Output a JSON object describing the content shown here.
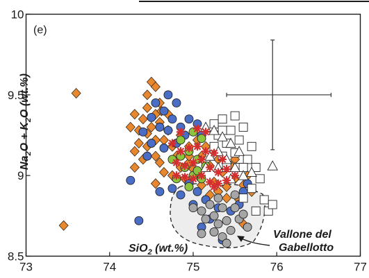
{
  "chart_data": {
    "type": "scatter",
    "panel_label": "(e)",
    "xlim": [
      73,
      77
    ],
    "ylim": [
      8.5,
      10
    ],
    "x_ticks": [
      "73",
      "74",
      "75",
      "76",
      "77"
    ],
    "y_ticks": [
      "8.5",
      "9",
      "9.5",
      "10"
    ],
    "ylabel": {
      "parts": [
        "Na",
        "2",
        "O + K",
        "2",
        "O (wt.%)"
      ]
    },
    "xlabel": {
      "parts": [
        "SiO",
        "2",
        " (wt.%)"
      ]
    },
    "annotation": {
      "line1": "Vallone del",
      "line2": "Gabellotto"
    },
    "error_bar": {
      "x": 75.95,
      "y": 9.5,
      "x_err_low": 0.55,
      "x_err_high": 0.7,
      "y_err_low": 0.34,
      "y_err_high": 0.34
    },
    "series": [
      {
        "marker": "diamond",
        "color": "#e8872e",
        "points": [
          [
            73.6,
            9.51
          ],
          [
            73.45,
            8.69
          ],
          [
            74.5,
            9.58
          ],
          [
            74.55,
            9.55
          ],
          [
            74.45,
            9.5
          ],
          [
            74.6,
            9.45
          ],
          [
            74.45,
            9.42
          ],
          [
            74.55,
            9.38
          ],
          [
            74.4,
            9.35
          ],
          [
            74.3,
            9.38
          ],
          [
            74.6,
            9.33
          ],
          [
            74.5,
            9.3
          ],
          [
            74.45,
            9.26
          ],
          [
            74.35,
            9.28
          ],
          [
            74.55,
            9.22
          ],
          [
            74.7,
            9.28
          ],
          [
            74.65,
            9.22
          ],
          [
            74.45,
            9.18
          ],
          [
            74.3,
            9.15
          ],
          [
            74.55,
            9.12
          ],
          [
            74.75,
            9.18
          ],
          [
            74.8,
            9.12
          ],
          [
            74.6,
            9.08
          ],
          [
            74.4,
            9.1
          ],
          [
            74.3,
            9.05
          ],
          [
            74.85,
            9.05
          ],
          [
            74.75,
            9.0
          ],
          [
            74.9,
            8.98
          ],
          [
            74.95,
            9.08
          ],
          [
            75.0,
            9.04
          ],
          [
            75.1,
            9.12
          ],
          [
            74.95,
            9.18
          ],
          [
            74.85,
            9.25
          ],
          [
            75.05,
            9.22
          ],
          [
            75.15,
            9.18
          ],
          [
            75.2,
            9.06
          ],
          [
            75.3,
            9.1
          ],
          [
            75.35,
            9.02
          ],
          [
            75.25,
            8.96
          ],
          [
            75.1,
            8.94
          ],
          [
            75.4,
            8.93
          ],
          [
            75.5,
            8.98
          ],
          [
            75.45,
            9.06
          ],
          [
            75.6,
            8.94
          ],
          [
            75.7,
            8.9
          ],
          [
            75.55,
            8.85
          ],
          [
            75.4,
            8.86
          ],
          [
            75.2,
            8.88
          ],
          [
            74.55,
            8.95
          ],
          [
            75.6,
            8.7
          ],
          [
            75.65,
            9.0
          ],
          [
            75.5,
            9.1
          ],
          [
            74.7,
            9.38
          ],
          [
            74.62,
            9.4
          ],
          [
            74.25,
            9.3
          ],
          [
            74.35,
            9.2
          ],
          [
            74.95,
            9.12
          ],
          [
            75.3,
            8.9
          ],
          [
            74.65,
            9.02
          ],
          [
            75.05,
            9.0
          ]
        ]
      },
      {
        "marker": "circle",
        "color": "#4a6ec5",
        "points": [
          [
            74.7,
            9.5
          ],
          [
            74.55,
            9.45
          ],
          [
            74.65,
            9.4
          ],
          [
            74.75,
            9.35
          ],
          [
            74.5,
            9.36
          ],
          [
            74.6,
            9.3
          ],
          [
            74.7,
            9.28
          ],
          [
            74.85,
            9.3
          ],
          [
            74.9,
            9.25
          ],
          [
            74.8,
            9.2
          ],
          [
            74.65,
            9.17
          ],
          [
            74.5,
            9.2
          ],
          [
            74.4,
            9.27
          ],
          [
            74.95,
            9.35
          ],
          [
            75.05,
            9.32
          ],
          [
            75.1,
            9.25
          ],
          [
            74.25,
            8.97
          ],
          [
            74.35,
            8.72
          ],
          [
            74.95,
            8.95
          ],
          [
            74.75,
            8.92
          ],
          [
            74.6,
            8.9
          ],
          [
            75.0,
            8.82
          ],
          [
            75.15,
            8.85
          ],
          [
            75.3,
            8.8
          ],
          [
            75.2,
            8.73
          ],
          [
            75.1,
            8.68
          ],
          [
            75.25,
            8.65
          ],
          [
            75.35,
            8.6
          ],
          [
            75.45,
            8.78
          ],
          [
            75.55,
            8.82
          ],
          [
            75.6,
            8.9
          ],
          [
            75.65,
            8.95
          ],
          [
            74.85,
            8.88
          ],
          [
            75.05,
            8.9
          ],
          [
            74.8,
            9.45
          ],
          [
            74.45,
            9.12
          ]
        ]
      },
      {
        "marker": "circle",
        "color": "#8cc43e",
        "points": [
          [
            75.0,
            9.27
          ],
          [
            75.1,
            9.23
          ],
          [
            74.85,
            9.22
          ],
          [
            74.95,
            9.15
          ],
          [
            75.05,
            9.1
          ],
          [
            74.75,
            9.1
          ],
          [
            74.9,
            9.05
          ],
          [
            75.0,
            9.0
          ],
          [
            75.1,
            8.98
          ],
          [
            74.8,
            8.98
          ],
          [
            74.95,
            8.93
          ],
          [
            75.05,
            9.03
          ],
          [
            75.15,
            9.06
          ],
          [
            74.85,
            9.12
          ]
        ]
      },
      {
        "marker": "square",
        "color": "#ffffff",
        "points": [
          [
            75.25,
            9.32
          ],
          [
            75.35,
            9.35
          ],
          [
            75.5,
            9.37
          ],
          [
            75.6,
            9.3
          ],
          [
            75.45,
            9.28
          ],
          [
            75.3,
            9.25
          ],
          [
            75.4,
            9.2
          ],
          [
            75.55,
            9.22
          ],
          [
            75.7,
            9.18
          ],
          [
            75.65,
            9.1
          ],
          [
            75.5,
            9.14
          ],
          [
            75.35,
            9.12
          ],
          [
            75.75,
            9.05
          ],
          [
            75.8,
            8.98
          ],
          [
            75.7,
            8.92
          ],
          [
            75.85,
            8.85
          ],
          [
            75.9,
            8.78
          ],
          [
            75.95,
            8.82
          ],
          [
            75.6,
            8.86
          ],
          [
            75.75,
            8.78
          ],
          [
            75.55,
            9.05
          ],
          [
            75.4,
            9.05
          ],
          [
            75.25,
            9.18
          ],
          [
            75.6,
            9.05
          ],
          [
            75.35,
            9.28
          ]
        ]
      },
      {
        "marker": "triangle",
        "color": "#ffffff",
        "points": [
          [
            75.15,
            9.3
          ],
          [
            75.25,
            9.28
          ],
          [
            75.35,
            9.24
          ],
          [
            75.45,
            9.2
          ],
          [
            75.55,
            9.15
          ],
          [
            75.3,
            9.15
          ],
          [
            75.2,
            9.12
          ],
          [
            75.4,
            9.1
          ],
          [
            75.5,
            9.05
          ],
          [
            75.6,
            9.0
          ],
          [
            75.3,
            9.05
          ],
          [
            75.95,
            9.06
          ],
          [
            75.7,
            9.02
          ],
          [
            75.45,
            8.98
          ],
          [
            75.15,
            9.05
          ]
        ]
      },
      {
        "marker": "asterisk",
        "color": "#d42e2e",
        "points": [
          [
            74.75,
            9.2
          ],
          [
            74.85,
            9.15
          ],
          [
            74.95,
            9.17
          ],
          [
            75.05,
            9.18
          ],
          [
            75.15,
            9.15
          ],
          [
            75.25,
            9.14
          ],
          [
            75.35,
            9.1
          ],
          [
            74.8,
            9.08
          ],
          [
            74.9,
            9.06
          ],
          [
            75.0,
            9.08
          ],
          [
            75.1,
            9.1
          ],
          [
            75.2,
            9.05
          ],
          [
            75.3,
            9.02
          ],
          [
            75.4,
            9.04
          ],
          [
            74.8,
            9.0
          ],
          [
            74.9,
            8.99
          ],
          [
            75.0,
            8.98
          ],
          [
            75.1,
            9.0
          ],
          [
            75.2,
            8.96
          ],
          [
            75.3,
            8.95
          ],
          [
            75.4,
            8.97
          ],
          [
            75.5,
            9.0
          ],
          [
            75.15,
            9.27
          ],
          [
            75.05,
            9.29
          ],
          [
            74.85,
            9.27
          ],
          [
            75.25,
            8.93
          ]
        ]
      },
      {
        "marker": "circle",
        "color": "#a6a6a6",
        "points": [
          [
            75.0,
            8.8
          ],
          [
            75.1,
            8.78
          ],
          [
            75.2,
            8.82
          ],
          [
            75.25,
            8.75
          ],
          [
            75.3,
            8.7
          ],
          [
            75.15,
            8.73
          ],
          [
            75.35,
            8.8
          ],
          [
            75.4,
            8.72
          ],
          [
            75.45,
            8.66
          ],
          [
            75.5,
            8.8
          ],
          [
            75.55,
            8.73
          ],
          [
            75.35,
            8.62
          ],
          [
            75.65,
            8.68
          ],
          [
            75.25,
            8.65
          ],
          [
            75.6,
            8.76
          ],
          [
            75.4,
            8.58
          ],
          [
            75.1,
            8.64
          ],
          [
            75.5,
            8.88
          ],
          [
            75.3,
            8.86
          ]
        ]
      }
    ]
  }
}
